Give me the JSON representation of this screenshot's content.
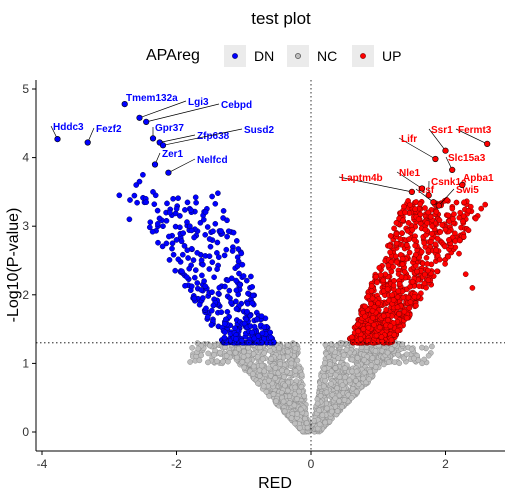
{
  "chart_data": {
    "type": "scatter",
    "title": "test plot",
    "xlabel": "RED",
    "ylabel": "-Log10(P-value)",
    "xlim": [
      -4,
      2.9
    ],
    "ylim": [
      -0.2,
      5.1
    ],
    "x_ticks": [
      "-4",
      "-2",
      "0",
      "2"
    ],
    "x_tick_values": [
      -4,
      -2,
      0,
      2
    ],
    "y_ticks": [
      "0",
      "1",
      "2",
      "3",
      "4",
      "5"
    ],
    "y_tick_values": [
      0,
      1,
      2,
      3,
      4,
      5
    ],
    "thresholds": {
      "x": 0,
      "y": 1.3
    },
    "legend": {
      "title": "APAreg",
      "position": "top",
      "entries": [
        {
          "label": "DN",
          "color": "#0000ff"
        },
        {
          "label": "NC",
          "color": "#bebebe"
        },
        {
          "label": "UP",
          "color": "#ff0000"
        }
      ]
    },
    "colors": {
      "DN": "#0000ff",
      "NC": "#bebebe",
      "UP": "#ff0000",
      "UP_edge": "#7a0000",
      "DN_edge": "#000066",
      "NC_edge": "#8c8c8c"
    },
    "background_points_note": "dense cloud of gene points; labelled genes listed below",
    "labeled_genes": [
      {
        "name": "Tmem132a",
        "x": -2.77,
        "y": 4.78,
        "group": "DN"
      },
      {
        "name": "Lgi3",
        "x": -2.55,
        "y": 4.58,
        "group": "DN"
      },
      {
        "name": "Cebpd",
        "x": -2.45,
        "y": 4.52,
        "group": "DN"
      },
      {
        "name": "Hddc3",
        "x": -3.77,
        "y": 4.27,
        "group": "DN"
      },
      {
        "name": "Fezf2",
        "x": -3.32,
        "y": 4.22,
        "group": "DN"
      },
      {
        "name": "Gpr37",
        "x": -2.35,
        "y": 4.28,
        "group": "DN"
      },
      {
        "name": "Zfp638",
        "x": -2.25,
        "y": 4.22,
        "group": "DN"
      },
      {
        "name": "Susd2",
        "x": -2.2,
        "y": 4.18,
        "group": "DN"
      },
      {
        "name": "Zer1",
        "x": -2.32,
        "y": 3.9,
        "group": "DN"
      },
      {
        "name": "Nelfcd",
        "x": -2.12,
        "y": 3.78,
        "group": "DN"
      },
      {
        "name": "Ssr1",
        "x": 2.0,
        "y": 4.1,
        "group": "UP"
      },
      {
        "name": "Fermt3",
        "x": 2.62,
        "y": 4.2,
        "group": "UP"
      },
      {
        "name": "Lifr",
        "x": 1.85,
        "y": 3.98,
        "group": "UP"
      },
      {
        "name": "Slc15a3",
        "x": 2.1,
        "y": 3.82,
        "group": "UP"
      },
      {
        "name": "Nle1",
        "x": 1.65,
        "y": 3.55,
        "group": "UP"
      },
      {
        "name": "Laptm4b",
        "x": 1.5,
        "y": 3.5,
        "group": "UP"
      },
      {
        "name": "Apba1",
        "x": 2.25,
        "y": 3.6,
        "group": "UP"
      },
      {
        "name": "Csnk1e",
        "x": 1.75,
        "y": 3.45,
        "group": "UP"
      },
      {
        "name": "Nsf",
        "x": 1.82,
        "y": 3.35,
        "group": "UP"
      },
      {
        "name": "Swi5",
        "x": 1.9,
        "y": 3.3,
        "group": "UP"
      }
    ]
  }
}
